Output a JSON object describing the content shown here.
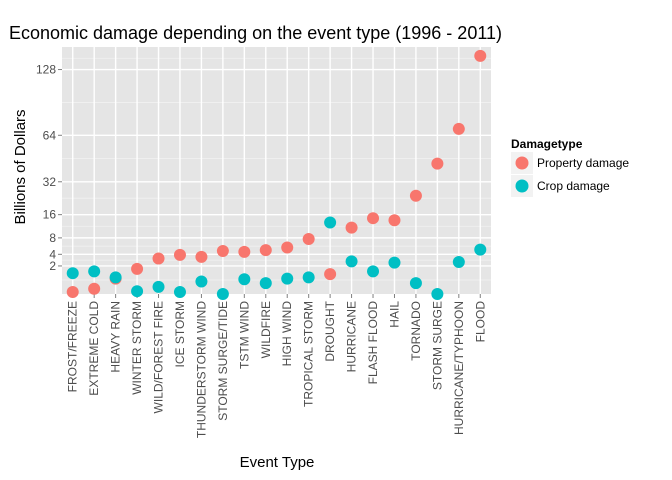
{
  "chart_data": {
    "type": "scatter",
    "title": "Economic damage depending on the event type (1996 - 2011)",
    "xlabel": "Event Type",
    "ylabel": "Billions of Dollars",
    "categories": [
      "FROST/FREEZE",
      "EXTREME COLD",
      "HEAVY RAIN",
      "WINTER STORM",
      "WILD/FOREST FIRE",
      "ICE STORM",
      "THUNDERSTORM WIND",
      "STORM SURGE/TIDE",
      "TSTM WIND",
      "WILDFIRE",
      "HIGH WIND",
      "TROPICAL STORM",
      "DROUGHT",
      "HURRICANE",
      "FLASH FLOOD",
      "HAIL",
      "TORNADO",
      "STORM SURGE",
      "HURRICANE/TYPHOON",
      "FLOOD"
    ],
    "yticks": [
      2,
      4,
      8,
      16,
      32,
      64,
      128
    ],
    "y_scale": "sqrt",
    "ylim": [
      0,
      155
    ],
    "grid": true,
    "legend_title": "Damagetype",
    "legend_position": "right",
    "series": [
      {
        "name": "Property damage",
        "color": "#F8766D",
        "values": [
          0.01,
          0.07,
          0.6,
          1.6,
          3.2,
          3.9,
          3.5,
          4.7,
          4.5,
          4.9,
          5.5,
          7.7,
          1.0,
          11.2,
          14.6,
          13.8,
          24.5,
          43.2,
          69.3,
          144.0
        ]
      },
      {
        "name": "Crop damage",
        "color": "#00BFC4",
        "values": [
          1.1,
          1.3,
          0.7,
          0.02,
          0.13,
          0.01,
          0.4,
          0.0,
          0.55,
          0.3,
          0.6,
          0.7,
          13.0,
          2.7,
          1.3,
          2.5,
          0.3,
          0.0,
          2.6,
          5.0
        ]
      }
    ]
  }
}
